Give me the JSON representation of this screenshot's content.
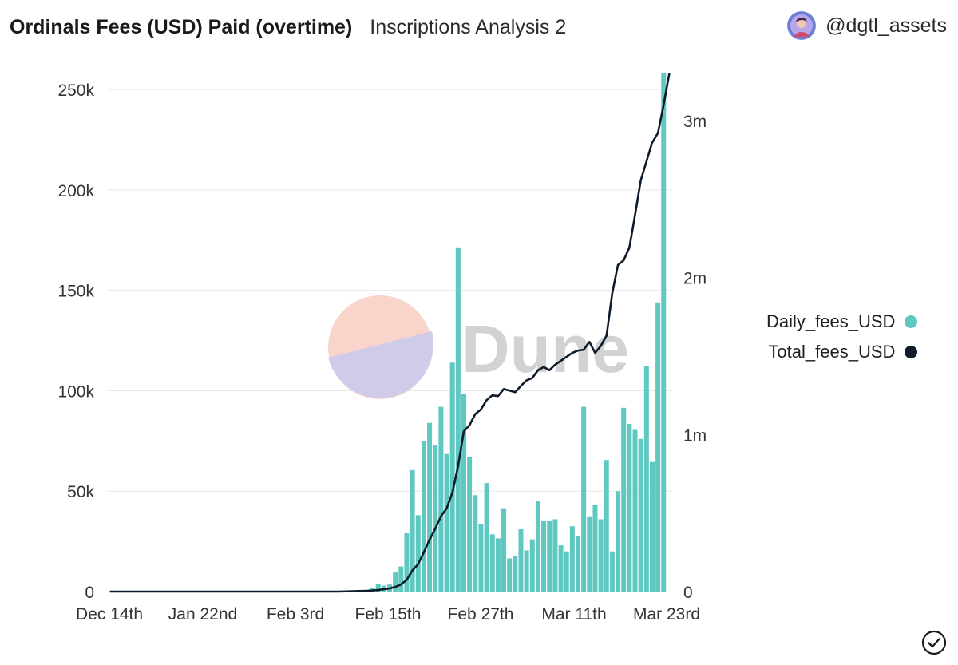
{
  "header": {
    "title": "Ordinals Fees (USD) Paid (overtime)",
    "subtitle": "Inscriptions Analysis 2",
    "author": "@dgtl_assets"
  },
  "watermark": {
    "text": "Dune"
  },
  "icons": {
    "avatar": "avatar-icon",
    "check": "check-circle-icon"
  },
  "colors": {
    "bar": "#5ec8c1",
    "line": "#0d1b2a",
    "grid": "#e8e8e8",
    "axis_text": "#333333"
  },
  "chart_data": {
    "type": "bar",
    "title": "Ordinals Fees (USD) Paid (overtime)",
    "x_ticks": [
      "Dec 14th",
      "Jan 22nd",
      "Feb 3rd",
      "Feb 15th",
      "Feb 27th",
      "Mar 11th",
      "Mar 23rd"
    ],
    "y_left": {
      "ticks": [
        "0",
        "50k",
        "100k",
        "150k",
        "200k",
        "250k"
      ],
      "range": [
        0,
        258000
      ]
    },
    "y_right": {
      "ticks": [
        "0",
        "1m",
        "2m",
        "3m"
      ],
      "range": [
        0,
        3300000
      ]
    },
    "grid": true,
    "legend_position": "right",
    "series": [
      {
        "name": "Daily_fees_USD",
        "type": "bar",
        "axis": "left",
        "x_start_index": 46,
        "values": [
          2000,
          4000,
          3000,
          3500,
          9500,
          12500,
          29000,
          60500,
          38000,
          75000,
          84000,
          73000,
          92000,
          68500,
          114000,
          171000,
          98500,
          67000,
          48000,
          33500,
          54000,
          28500,
          26500,
          41500,
          16500,
          17500,
          31000,
          20500,
          26000,
          45000,
          35000,
          35000,
          36000,
          23000,
          20000,
          32500,
          27500,
          92000,
          37500,
          43000,
          36000,
          65500,
          20000,
          50000,
          91500,
          83500,
          80500,
          76000,
          112500,
          64500,
          144000,
          258000
        ]
      },
      {
        "name": "Total_fees_USD",
        "type": "line",
        "axis": "right",
        "points": [
          [
            0,
            0
          ],
          [
            40,
            0
          ],
          [
            45,
            5000
          ],
          [
            47,
            10000
          ],
          [
            49,
            20000
          ],
          [
            50,
            30000
          ],
          [
            51,
            45000
          ],
          [
            52,
            75000
          ],
          [
            53,
            135000
          ],
          [
            54,
            175000
          ],
          [
            55,
            250000
          ],
          [
            56,
            330000
          ],
          [
            57,
            400000
          ],
          [
            58,
            480000
          ],
          [
            59,
            530000
          ],
          [
            60,
            630000
          ],
          [
            61,
            800000
          ],
          [
            62,
            1020000
          ],
          [
            63,
            1060000
          ],
          [
            64,
            1130000
          ],
          [
            65,
            1160000
          ],
          [
            66,
            1220000
          ],
          [
            67,
            1250000
          ],
          [
            68,
            1245000
          ],
          [
            69,
            1290000
          ],
          [
            70,
            1280000
          ],
          [
            71,
            1270000
          ],
          [
            72,
            1310000
          ],
          [
            73,
            1345000
          ],
          [
            74,
            1360000
          ],
          [
            75,
            1410000
          ],
          [
            76,
            1430000
          ],
          [
            77,
            1410000
          ],
          [
            78,
            1445000
          ],
          [
            79,
            1470000
          ],
          [
            80,
            1495000
          ],
          [
            81,
            1520000
          ],
          [
            82,
            1535000
          ],
          [
            83,
            1540000
          ],
          [
            84,
            1590000
          ],
          [
            85,
            1520000
          ],
          [
            86,
            1565000
          ],
          [
            87,
            1630000
          ],
          [
            88,
            1900000
          ],
          [
            89,
            2080000
          ],
          [
            90,
            2110000
          ],
          [
            91,
            2190000
          ],
          [
            92,
            2400000
          ],
          [
            93,
            2620000
          ],
          [
            94,
            2740000
          ],
          [
            95,
            2860000
          ],
          [
            96,
            2920000
          ],
          [
            97,
            3100000
          ],
          [
            98,
            3300000
          ]
        ]
      }
    ]
  }
}
